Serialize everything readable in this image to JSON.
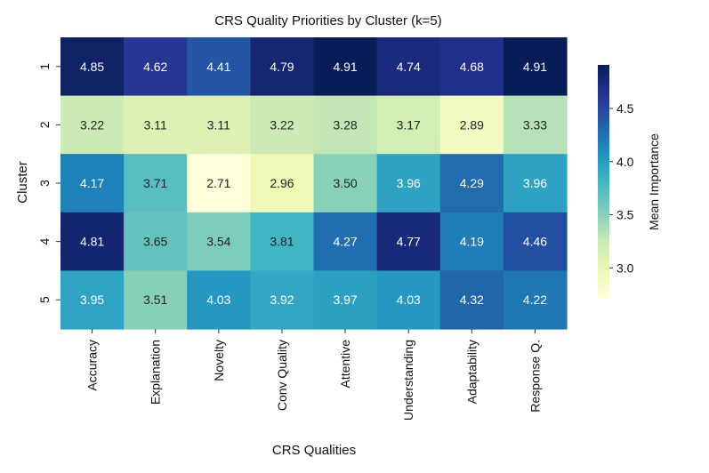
{
  "chart_data": {
    "type": "heatmap",
    "title": "CRS Quality Priorities by Cluster (k=5)",
    "xlabel": "CRS Qualities",
    "ylabel": "Cluster",
    "columns": [
      "Accuracy",
      "Explanation",
      "Novelty",
      "Conv Quality",
      "Attentive",
      "Understanding",
      "Adaptability",
      "Response Q."
    ],
    "rows": [
      "1",
      "2",
      "3",
      "4",
      "5"
    ],
    "values": [
      [
        4.85,
        4.62,
        4.41,
        4.79,
        4.91,
        4.74,
        4.68,
        4.91
      ],
      [
        3.22,
        3.11,
        3.11,
        3.22,
        3.28,
        3.17,
        2.89,
        3.33
      ],
      [
        4.17,
        3.71,
        2.71,
        2.96,
        3.5,
        3.96,
        4.29,
        3.96
      ],
      [
        4.81,
        3.65,
        3.54,
        3.81,
        4.27,
        4.77,
        4.19,
        4.46
      ],
      [
        3.95,
        3.51,
        4.03,
        3.92,
        3.97,
        4.03,
        4.32,
        4.22
      ]
    ],
    "color_range": [
      2.71,
      4.91
    ],
    "colormap": "YlGnBu",
    "colorbar": {
      "label": "Mean Importance",
      "ticks": [
        3.0,
        3.5,
        4.0,
        4.5
      ],
      "tick_labels": [
        "3.0",
        "3.5",
        "4.0",
        "4.5"
      ]
    }
  }
}
